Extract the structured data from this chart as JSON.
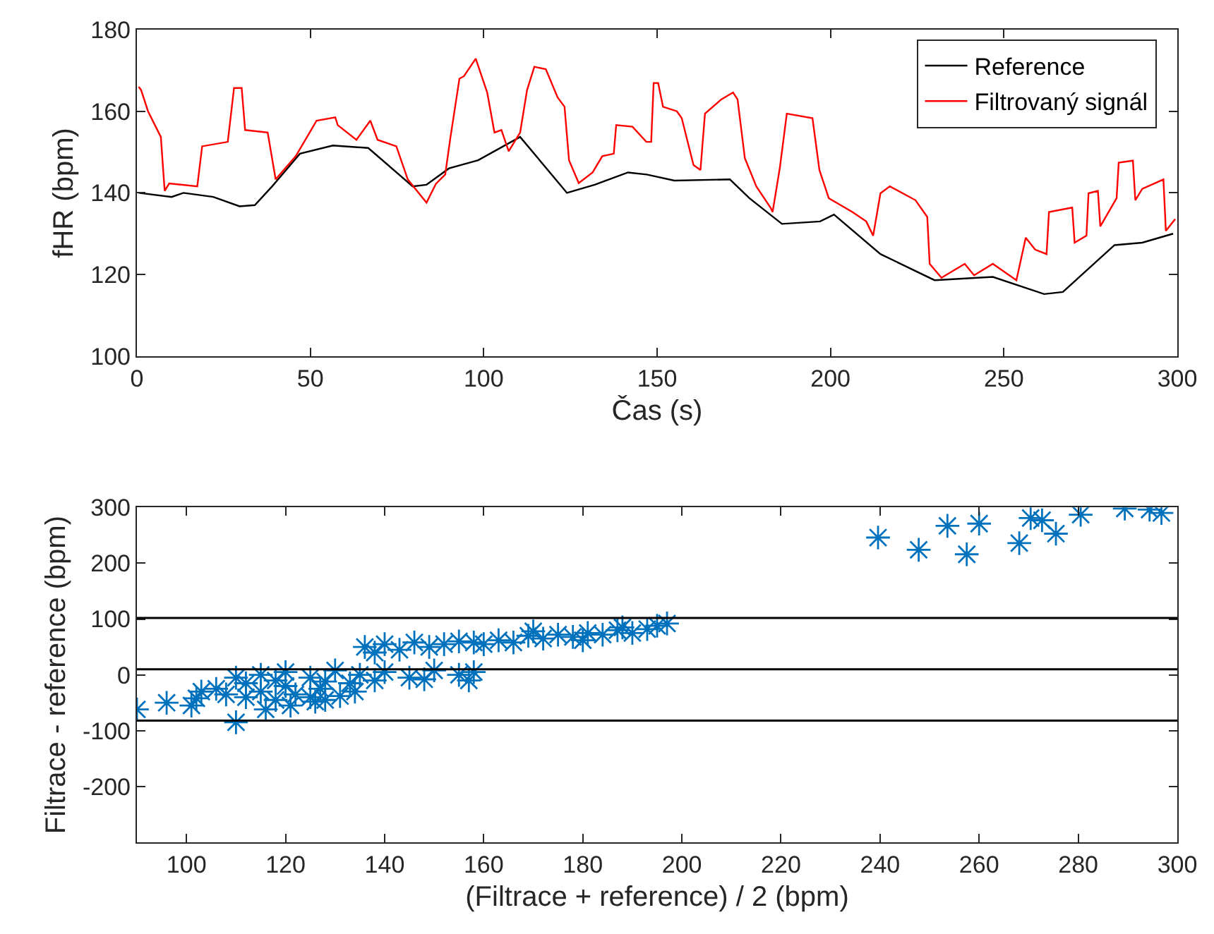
{
  "chart_data": [
    {
      "type": "line",
      "xlabel": "Čas (s)",
      "ylabel": "fHR (bpm)",
      "xlim": [
        0,
        300
      ],
      "xticks": [
        0,
        50,
        100,
        150,
        200,
        250,
        300
      ],
      "ylim": [
        100,
        180
      ],
      "yticks": [
        100,
        120,
        140,
        160,
        180
      ],
      "grid": false,
      "legend": "top right",
      "marker": "none",
      "line_style": "solid",
      "series": [
        {
          "name": "Reference",
          "color": "#000000",
          "x": [
            0.5,
            10,
            13.4,
            22,
            29.6,
            34,
            39,
            47,
            56.5,
            66.7,
            79.5,
            83.5,
            90,
            98.4,
            110.5,
            124,
            132,
            141.6,
            147,
            155,
            171,
            176.6,
            186,
            197,
            201,
            214.4,
            230,
            246.8,
            261.6,
            267,
            281.9,
            289.9,
            298.8
          ],
          "values": [
            140,
            139,
            140,
            139,
            136.7,
            137,
            141.6,
            149.6,
            151.6,
            151,
            141.6,
            142,
            146,
            148,
            153.7,
            140,
            142,
            145,
            144.5,
            143,
            143.3,
            138.7,
            132.4,
            133,
            134.7,
            125,
            118.6,
            119.4,
            115.2,
            115.7,
            127.2,
            127.8,
            130
          ]
        },
        {
          "name": "Filtrovaný signál",
          "color": "#ff0000",
          "x": [
            0.5,
            1.2,
            3.2,
            6.9,
            8,
            9.3,
            17.4,
            18.8,
            26.2,
            28,
            30.2,
            31.2,
            37.7,
            40,
            45.8,
            49.8,
            51.8,
            57.2,
            57.9,
            63.3,
            67.3,
            69.4,
            74.8,
            78.1,
            83.5,
            86.2,
            88.9,
            90.3,
            93,
            94.3,
            97.7,
            101,
            103.1,
            105.1,
            107.2,
            110.5,
            112.5,
            114.6,
            117.9,
            121.3,
            123.3,
            124.6,
            127.4,
            131.4,
            134.2,
            137.5,
            138.2,
            142.9,
            146.9,
            148.3,
            149,
            150.3,
            151.7,
            155.7,
            157.1,
            160.5,
            162.5,
            163.8,
            168.5,
            171.9,
            173.2,
            175.3,
            178.6,
            182.7,
            183.3,
            185.4,
            187.4,
            194.8,
            196.8,
            199.5,
            206.3,
            210.3,
            212.3,
            214.4,
            217.1,
            224.5,
            227.9,
            228.6,
            232,
            238.7,
            241.4,
            246.8,
            253.6,
            256.3,
            259,
            262.3,
            263,
            269.7,
            270.4,
            273.8,
            274.4,
            277.1,
            277.8,
            282.5,
            283.1,
            287.2,
            287.9,
            289.9,
            296,
            296.7,
            299.4
          ],
          "values": [
            166,
            165.2,
            160,
            153.7,
            140.5,
            142.3,
            141.6,
            151.4,
            152.5,
            165.7,
            165.7,
            155.4,
            154.8,
            143.3,
            149,
            154.8,
            157.7,
            158.5,
            156.6,
            153,
            157.7,
            153,
            151.4,
            143.3,
            137.6,
            142.2,
            144.5,
            153,
            168,
            168.6,
            172.9,
            164.6,
            154.8,
            155.4,
            150.2,
            154.8,
            165.2,
            170.9,
            170.3,
            163.4,
            161.1,
            148,
            142.4,
            145,
            149,
            149.6,
            156.6,
            156.2,
            152.5,
            152.5,
            166.9,
            166.9,
            161.1,
            160,
            158.3,
            146.8,
            145.6,
            159.4,
            162.9,
            164.6,
            162.9,
            148.5,
            141.6,
            136.4,
            135.3,
            146.2,
            159.4,
            158.3,
            145.6,
            138.7,
            135.3,
            133,
            129.5,
            139.9,
            141.6,
            138.2,
            134.1,
            122.6,
            119.2,
            122.6,
            119.8,
            122.6,
            118.6,
            129,
            126.1,
            125,
            135.3,
            136.4,
            127.8,
            129.5,
            139.9,
            140.5,
            131.8,
            138.7,
            147.4,
            147.9,
            138.2,
            141,
            143.3,
            130.7,
            133.6
          ]
        }
      ]
    },
    {
      "type": "scatter",
      "xlabel": "(Filtrace + reference) / 2 (bpm)",
      "ylabel": "Filtrace - reference (bpm)",
      "xlim": [
        90,
        300
      ],
      "xticks": [
        100,
        120,
        140,
        160,
        180,
        200,
        220,
        240,
        260,
        280,
        300
      ],
      "ylim": [
        -300,
        300
      ],
      "yticks": [
        -200,
        -100,
        0,
        100,
        200,
        300
      ],
      "grid": false,
      "legend": false,
      "marker": "cross",
      "series": [
        {
          "color": "#0072bd",
          "x": [
            90,
            96,
            101,
            102,
            110,
            116,
            121,
            126,
            103,
            106,
            108,
            112,
            115,
            118,
            122,
            125,
            128,
            131,
            134,
            112,
            120,
            127,
            133,
            110,
            115,
            120,
            125,
            130,
            135,
            140,
            145,
            150,
            155,
            158,
            118,
            128,
            138,
            148,
            157,
            136,
            138,
            140,
            143,
            146,
            149,
            152,
            155,
            158,
            160,
            163,
            166,
            169,
            172,
            175,
            178,
            181,
            184,
            187,
            190,
            193,
            195,
            197,
            170,
            180,
            188,
            239.6,
            247.8,
            253.6,
            257.5,
            260,
            268.1,
            270.4,
            272.7,
            275.5,
            280.5,
            289.4,
            294.4,
            296.8
          ],
          "values": [
            -62,
            -50,
            -55,
            -42,
            -85,
            -62,
            -55,
            -48,
            -30,
            -25,
            -35,
            -40,
            -30,
            -45,
            -35,
            -40,
            -45,
            -38,
            -30,
            -15,
            -20,
            -25,
            -15,
            -5,
            0,
            5,
            -5,
            8,
            0,
            5,
            -5,
            8,
            0,
            5,
            -10,
            -12,
            -10,
            -8,
            -10,
            50,
            40,
            55,
            45,
            58,
            50,
            55,
            60,
            58,
            55,
            62,
            58,
            70,
            65,
            72,
            68,
            75,
            72,
            80,
            75,
            82,
            88,
            92,
            78,
            62,
            85,
            246,
            224,
            267,
            216,
            271,
            236,
            281,
            277,
            253,
            287,
            298,
            296,
            290
          ]
        }
      ],
      "ref_lines": [
        {
          "axis": "y",
          "value": 10,
          "color": "#000000"
        },
        {
          "axis": "y",
          "value": 102,
          "color": "#000000"
        },
        {
          "axis": "y",
          "value": -82,
          "color": "#000000"
        }
      ]
    }
  ]
}
